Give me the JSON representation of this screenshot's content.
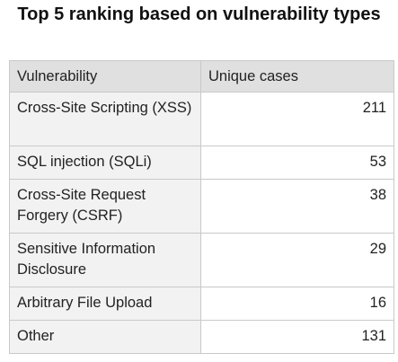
{
  "title": "Top 5 ranking based on vulnerability types",
  "table": {
    "headers": [
      "Vulnerability",
      "Unique cases"
    ],
    "rows": [
      {
        "vulnerability": "Cross-Site Scripting (XSS)",
        "unique_cases": "211"
      },
      {
        "vulnerability": "SQL injection (SQLi)",
        "unique_cases": "53"
      },
      {
        "vulnerability": "Cross-Site Request Forgery (CSRF)",
        "unique_cases": "38"
      },
      {
        "vulnerability": "Sensitive Information Disclosure",
        "unique_cases": "29"
      },
      {
        "vulnerability": "Arbitrary File Upload",
        "unique_cases": "16"
      },
      {
        "vulnerability": "Other",
        "unique_cases": "131"
      }
    ]
  },
  "colors": {
    "header_bg": "#e0e0e0",
    "label_bg": "#f2f2f2",
    "value_bg": "#ffffff",
    "border": "#c9c9c9",
    "text": "#222222"
  }
}
